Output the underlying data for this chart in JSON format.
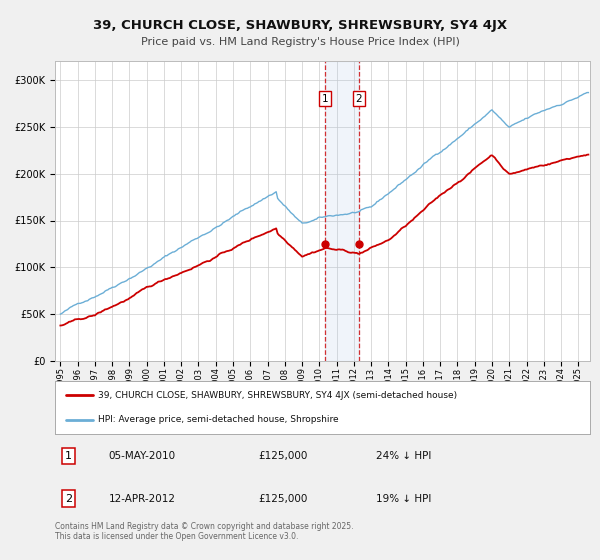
{
  "title1": "39, CHURCH CLOSE, SHAWBURY, SHREWSBURY, SY4 4JX",
  "title2": "Price paid vs. HM Land Registry's House Price Index (HPI)",
  "legend1": "39, CHURCH CLOSE, SHAWBURY, SHREWSBURY, SY4 4JX (semi-detached house)",
  "legend2": "HPI: Average price, semi-detached house, Shropshire",
  "purchase1_date": "05-MAY-2010",
  "purchase1_price": "£125,000",
  "purchase1_hpi": "24% ↓ HPI",
  "purchase2_date": "12-APR-2012",
  "purchase2_price": "£125,000",
  "purchase2_hpi": "19% ↓ HPI",
  "footer": "Contains HM Land Registry data © Crown copyright and database right 2025.\nThis data is licensed under the Open Government Licence v3.0.",
  "hpi_color": "#6baed6",
  "price_color": "#cc0000",
  "background_color": "#f0f0f0",
  "plot_bg": "#ffffff",
  "grid_color": "#cccccc",
  "purchase1_x": 2010.34,
  "purchase2_x": 2012.28,
  "ylim": [
    0,
    320000
  ],
  "xlim_start": 1994.7,
  "xlim_end": 2025.7
}
